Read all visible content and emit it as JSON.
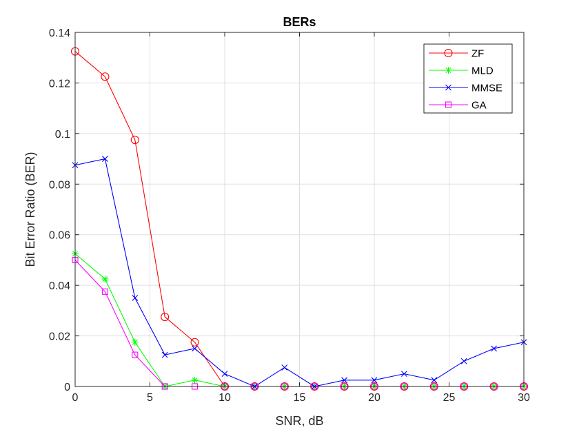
{
  "chart_data": {
    "type": "line",
    "title": "BERs",
    "xlabel": "SNR, dB",
    "ylabel": "Bit Error Ratio (BER)",
    "xlim": [
      0,
      30
    ],
    "ylim": [
      0,
      0.14
    ],
    "xticks": [
      "0",
      "5",
      "10",
      "15",
      "20",
      "25",
      "30"
    ],
    "xtick_values": [
      0,
      5,
      10,
      15,
      20,
      25,
      30
    ],
    "yticks": [
      "0",
      "0.02",
      "0.04",
      "0.06",
      "0.08",
      "0.1",
      "0.12",
      "0.14"
    ],
    "ytick_values": [
      0,
      0.02,
      0.04,
      0.06,
      0.08,
      0.1,
      0.12,
      0.14
    ],
    "grid": true,
    "legend_position": "top-right",
    "x": [
      0,
      2,
      4,
      6,
      8,
      10,
      12,
      14,
      16,
      18,
      20,
      22,
      24,
      26,
      28,
      30
    ],
    "series": [
      {
        "name": "ZF",
        "color": "#ff0000",
        "marker": "circle",
        "values": [
          0.1325,
          0.1225,
          0.0975,
          0.0275,
          0.0175,
          0,
          0,
          0,
          0,
          0,
          0,
          0,
          0,
          0,
          0,
          0
        ]
      },
      {
        "name": "MLD",
        "color": "#00ff00",
        "marker": "asterisk",
        "values": [
          0.0525,
          0.0425,
          0.0175,
          0,
          0.0025,
          0,
          0,
          0,
          0,
          0,
          0,
          0,
          0,
          0,
          0,
          0
        ]
      },
      {
        "name": "MMSE",
        "color": "#0000ff",
        "marker": "x",
        "values": [
          0.0875,
          0.09,
          0.035,
          0.0125,
          0.015,
          0.005,
          0,
          0.0075,
          0,
          0.0025,
          0.0025,
          0.005,
          0.0025,
          0.01,
          0.015,
          0.0175
        ]
      },
      {
        "name": "GA",
        "color": "#ff00ff",
        "marker": "square",
        "values": [
          0.05,
          0.0375,
          0.0125,
          0,
          0,
          0,
          0,
          0,
          0,
          0,
          0,
          0,
          0,
          0,
          0,
          0
        ]
      }
    ]
  }
}
